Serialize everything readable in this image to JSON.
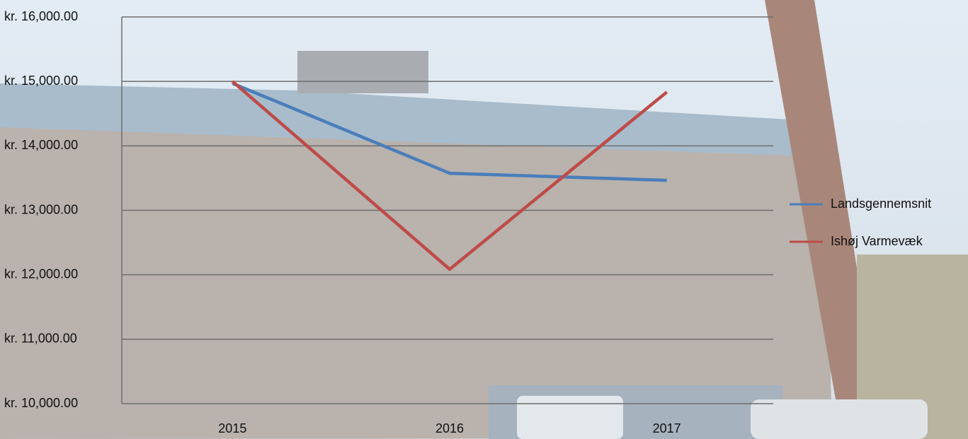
{
  "chart_data": {
    "type": "line",
    "categories": [
      "2015",
      "2016",
      "2017"
    ],
    "series": [
      {
        "name": "Landsgennemsnit",
        "color": "#4a7ebb",
        "values": [
          14970,
          13575,
          13465
        ]
      },
      {
        "name": "Ishøj Varmevæk",
        "color": "#be4b48",
        "values": [
          15000,
          12085,
          14835
        ]
      }
    ],
    "ylim": [
      10000,
      16000
    ],
    "yticks": [
      {
        "value": 10000,
        "label": "kr. 10,000.00"
      },
      {
        "value": 11000,
        "label": "kr. 11,000.00"
      },
      {
        "value": 12000,
        "label": "kr. 12,000.00"
      },
      {
        "value": 13000,
        "label": "kr. 13,000.00"
      },
      {
        "value": 14000,
        "label": "kr. 14,000.00"
      },
      {
        "value": 15000,
        "label": "kr. 15,000.00"
      },
      {
        "value": 16000,
        "label": "kr. 16,000.00"
      }
    ],
    "grid": true,
    "legend": "right"
  }
}
